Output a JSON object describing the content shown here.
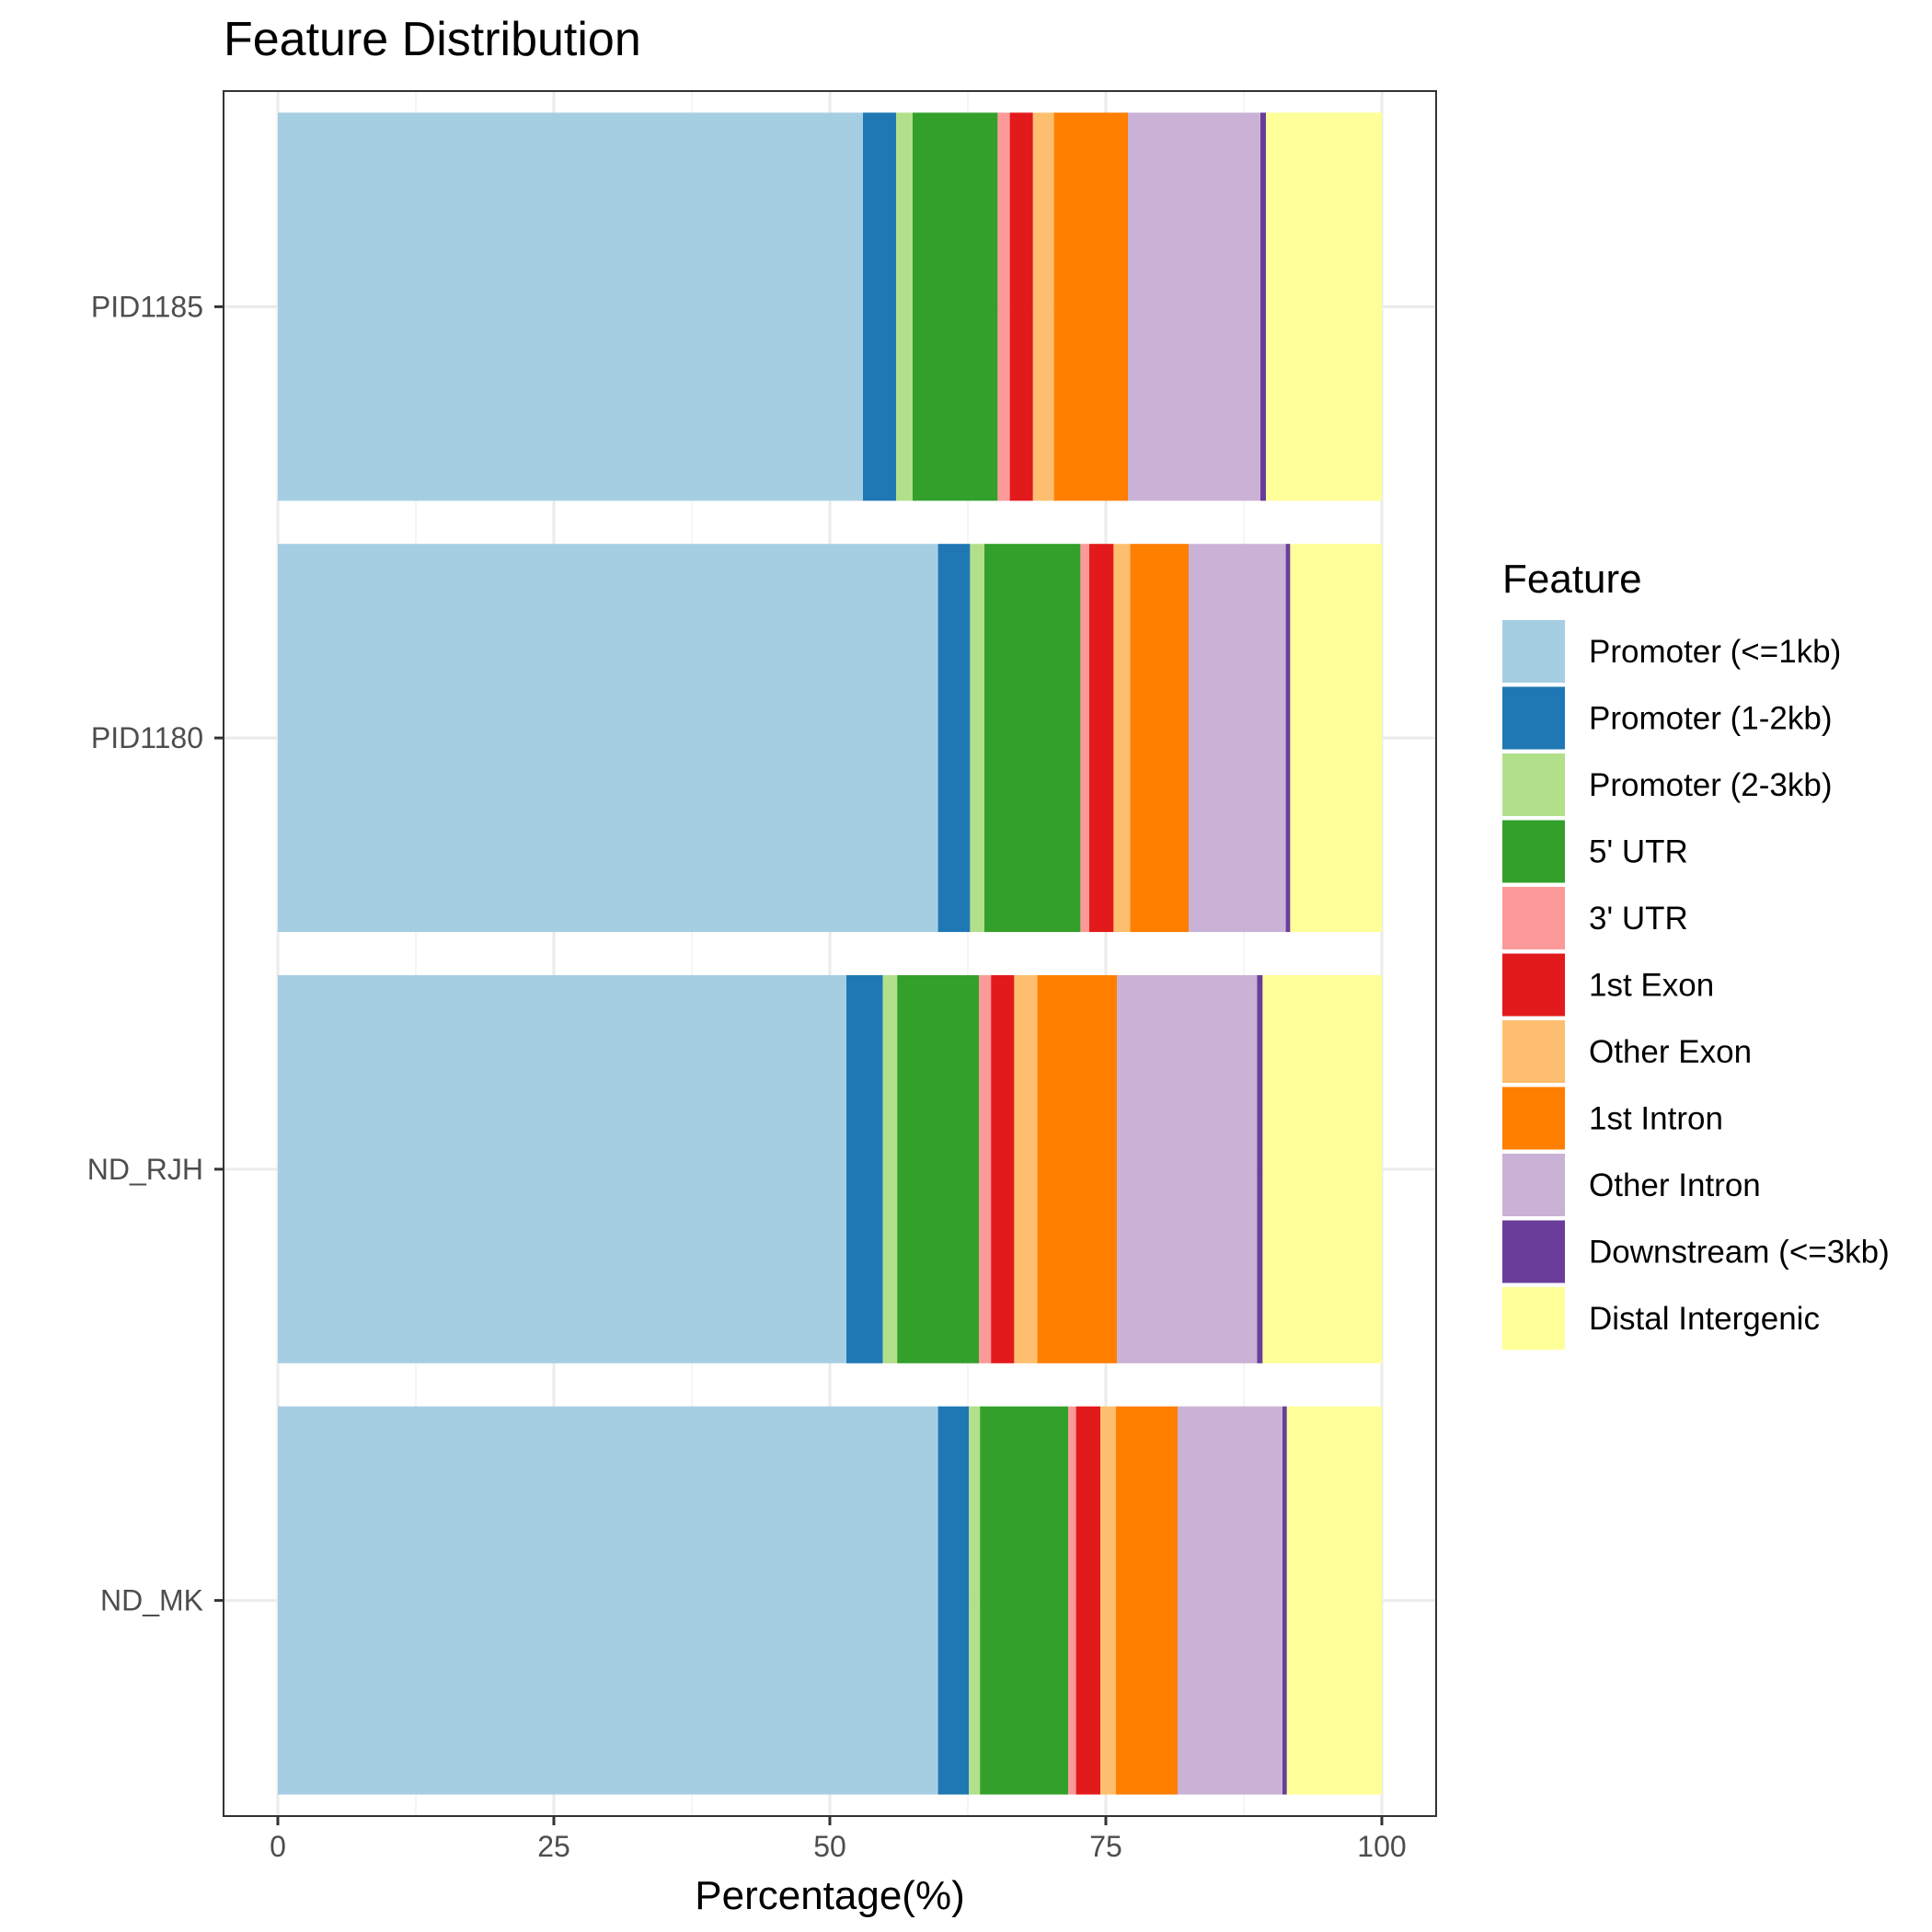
{
  "chart_data": {
    "type": "bar",
    "orientation": "horizontal",
    "stacked": true,
    "title": "Feature Distribution",
    "xlabel": "Percentage(%)",
    "ylabel": "",
    "xlim": [
      0,
      100
    ],
    "x_ticks": [
      "0",
      "25",
      "50",
      "75",
      "100"
    ],
    "x_tick_values": [
      0,
      25,
      50,
      75,
      100
    ],
    "grid": true,
    "legend_title": "Feature",
    "legend_position": "right",
    "categories": [
      "PID1185",
      "PID1180",
      "ND_RJH",
      "ND_MK"
    ],
    "series": [
      {
        "name": "Promoter (<=1kb)",
        "color": "#A6CEE3",
        "values": [
          53.0,
          59.8,
          51.5,
          59.8
        ]
      },
      {
        "name": "Promoter (1-2kb)",
        "color": "#1F78B4",
        "values": [
          3.0,
          2.9,
          3.3,
          2.8
        ]
      },
      {
        "name": "Promoter (2-3kb)",
        "color": "#B2DF8A",
        "values": [
          1.5,
          1.3,
          1.3,
          1.0
        ]
      },
      {
        "name": "5' UTR",
        "color": "#33A02C",
        "values": [
          7.7,
          8.7,
          7.4,
          8.0
        ]
      },
      {
        "name": "3' UTR",
        "color": "#FB9A99",
        "values": [
          1.1,
          0.8,
          1.1,
          0.7
        ]
      },
      {
        "name": "1st Exon",
        "color": "#E31A1C",
        "values": [
          2.1,
          2.2,
          2.1,
          2.2
        ]
      },
      {
        "name": "Other Exon",
        "color": "#FDBF6F",
        "values": [
          1.9,
          1.5,
          2.1,
          1.4
        ]
      },
      {
        "name": "1st Intron",
        "color": "#FF7F00",
        "values": [
          6.7,
          5.3,
          7.2,
          5.6
        ]
      },
      {
        "name": "Other Intron",
        "color": "#CAB2D6",
        "values": [
          12.0,
          8.8,
          12.7,
          9.5
        ]
      },
      {
        "name": "Downstream (<=3kb)",
        "color": "#6A3D9A",
        "values": [
          0.5,
          0.4,
          0.5,
          0.4
        ]
      },
      {
        "name": "Distal Intergenic",
        "color": "#FFFF99",
        "values": [
          10.5,
          8.3,
          10.8,
          8.6
        ]
      }
    ]
  }
}
